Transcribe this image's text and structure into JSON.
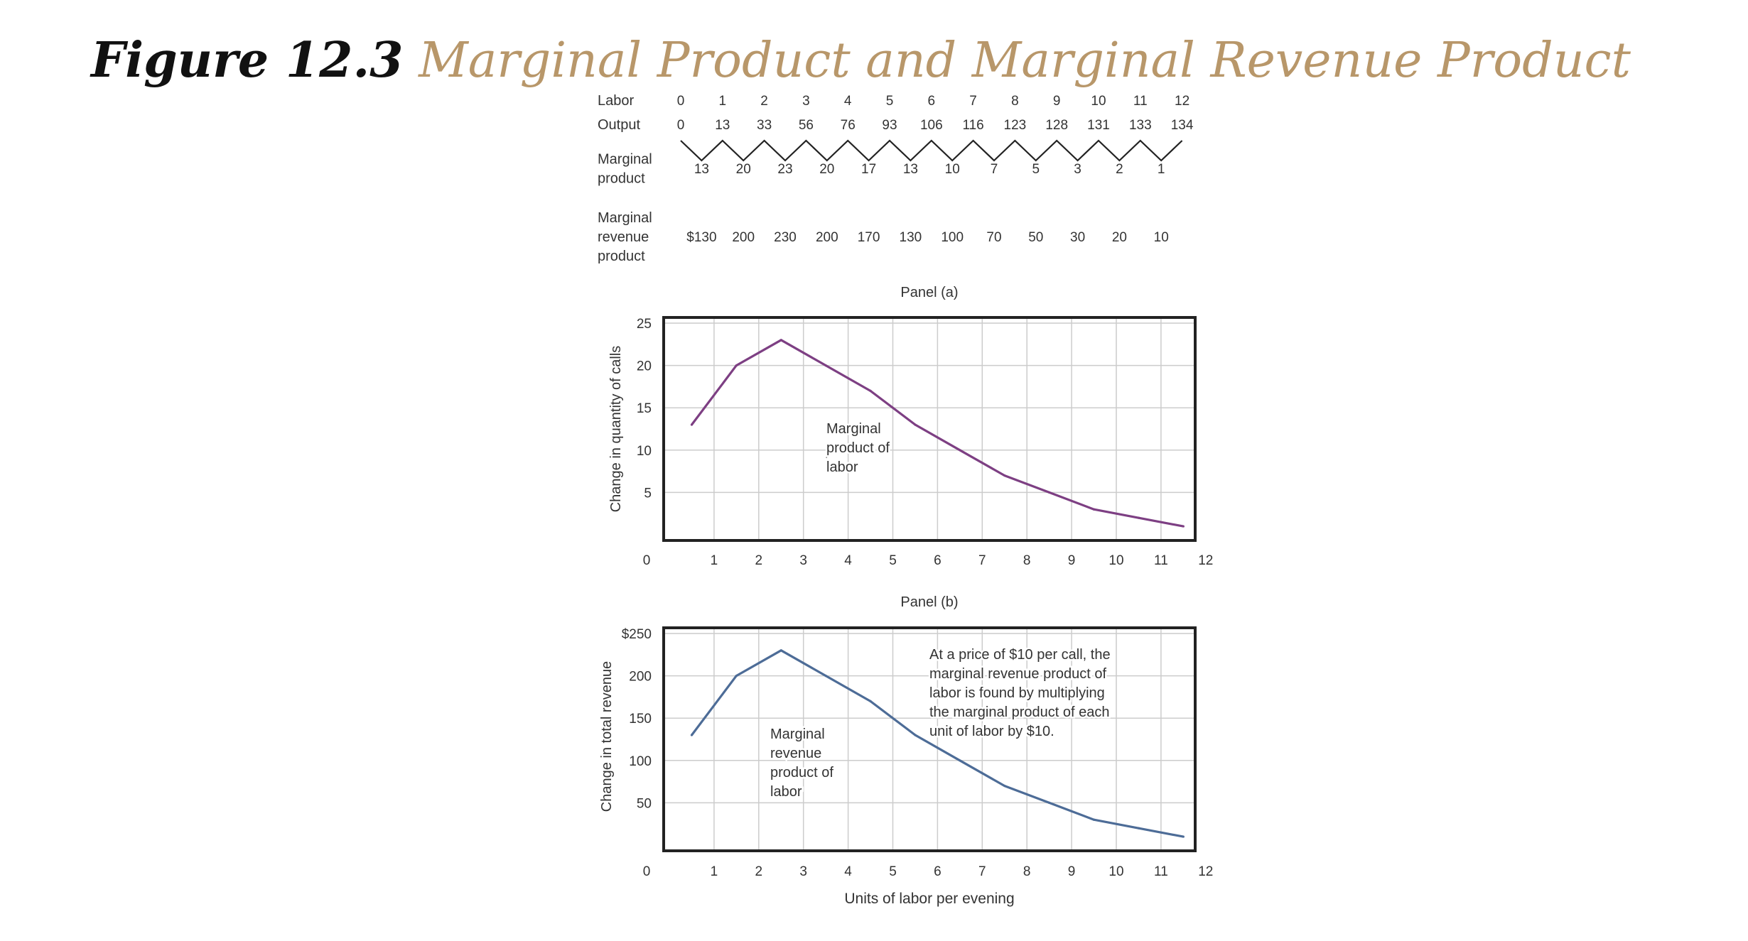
{
  "figure": {
    "label": "Figure 12.3",
    "title": "Marginal Product and Marginal Revenue Product"
  },
  "colors": {
    "title_accent": "#b8976a",
    "mp_line": "#7d3f83",
    "mrp_line": "#4d6c97",
    "grid": "#cccccc",
    "frame": "#222222"
  },
  "table": {
    "rows": [
      {
        "label": [
          "Labor"
        ],
        "values": [
          "0",
          "1",
          "2",
          "3",
          "4",
          "5",
          "6",
          "7",
          "8",
          "9",
          "10",
          "11",
          "12"
        ]
      },
      {
        "label": [
          "Output"
        ],
        "values": [
          "0",
          "13",
          "33",
          "56",
          "76",
          "93",
          "106",
          "116",
          "123",
          "128",
          "131",
          "133",
          "134"
        ]
      },
      {
        "label": [
          "Marginal",
          "product"
        ],
        "values": [
          "13",
          "20",
          "23",
          "20",
          "17",
          "13",
          "10",
          "7",
          "5",
          "3",
          "2",
          "1"
        ]
      },
      {
        "label": [
          "Marginal",
          "revenue",
          "product"
        ],
        "values": [
          "$130",
          "200",
          "230",
          "200",
          "170",
          "130",
          "100",
          "70",
          "50",
          "30",
          "20",
          "10"
        ]
      }
    ]
  },
  "chart_data": [
    {
      "type": "line",
      "panel_label": "Panel (a)",
      "ylabel": "Change in quantity of calls",
      "xlabel": "",
      "x_ticks": [
        "0",
        "1",
        "2",
        "3",
        "4",
        "5",
        "6",
        "7",
        "8",
        "9",
        "10",
        "11",
        "12"
      ],
      "y_ticks": [
        "5",
        "10",
        "15",
        "20",
        "25"
      ],
      "xlim": [
        0,
        12
      ],
      "ylim": [
        0,
        25
      ],
      "grid": true,
      "series": [
        {
          "x": [
            0.5,
            1.5,
            2.5,
            3.5,
            4.5,
            5.5,
            6.5,
            7.5,
            8.5,
            9.5,
            10.5,
            11.5
          ],
          "values": [
            13,
            20,
            23,
            20,
            17,
            13,
            10,
            7,
            5,
            3,
            2,
            1
          ]
        }
      ],
      "annotations": [
        [
          "Marginal",
          "product of",
          "labor"
        ]
      ]
    },
    {
      "type": "line",
      "panel_label": "Panel (b)",
      "ylabel": "Change in total revenue",
      "xlabel": "Units of labor per evening",
      "x_ticks": [
        "0",
        "1",
        "2",
        "3",
        "4",
        "5",
        "6",
        "7",
        "8",
        "9",
        "10",
        "11",
        "12"
      ],
      "y_ticks": [
        "50",
        "100",
        "150",
        "200",
        "$250"
      ],
      "xlim": [
        0,
        12
      ],
      "ylim": [
        0,
        250
      ],
      "grid": true,
      "series": [
        {
          "x": [
            0.5,
            1.5,
            2.5,
            3.5,
            4.5,
            5.5,
            6.5,
            7.5,
            8.5,
            9.5,
            10.5,
            11.5
          ],
          "values": [
            130,
            200,
            230,
            200,
            170,
            130,
            100,
            70,
            50,
            30,
            20,
            10
          ]
        }
      ],
      "annotations": [
        [
          "Marginal",
          "revenue",
          "product of",
          "labor"
        ],
        [
          "At a price of $10 per call, the",
          "marginal revenue product of",
          "labor is found by multiplying",
          "the marginal product of each",
          "unit of labor by $10."
        ]
      ]
    }
  ]
}
